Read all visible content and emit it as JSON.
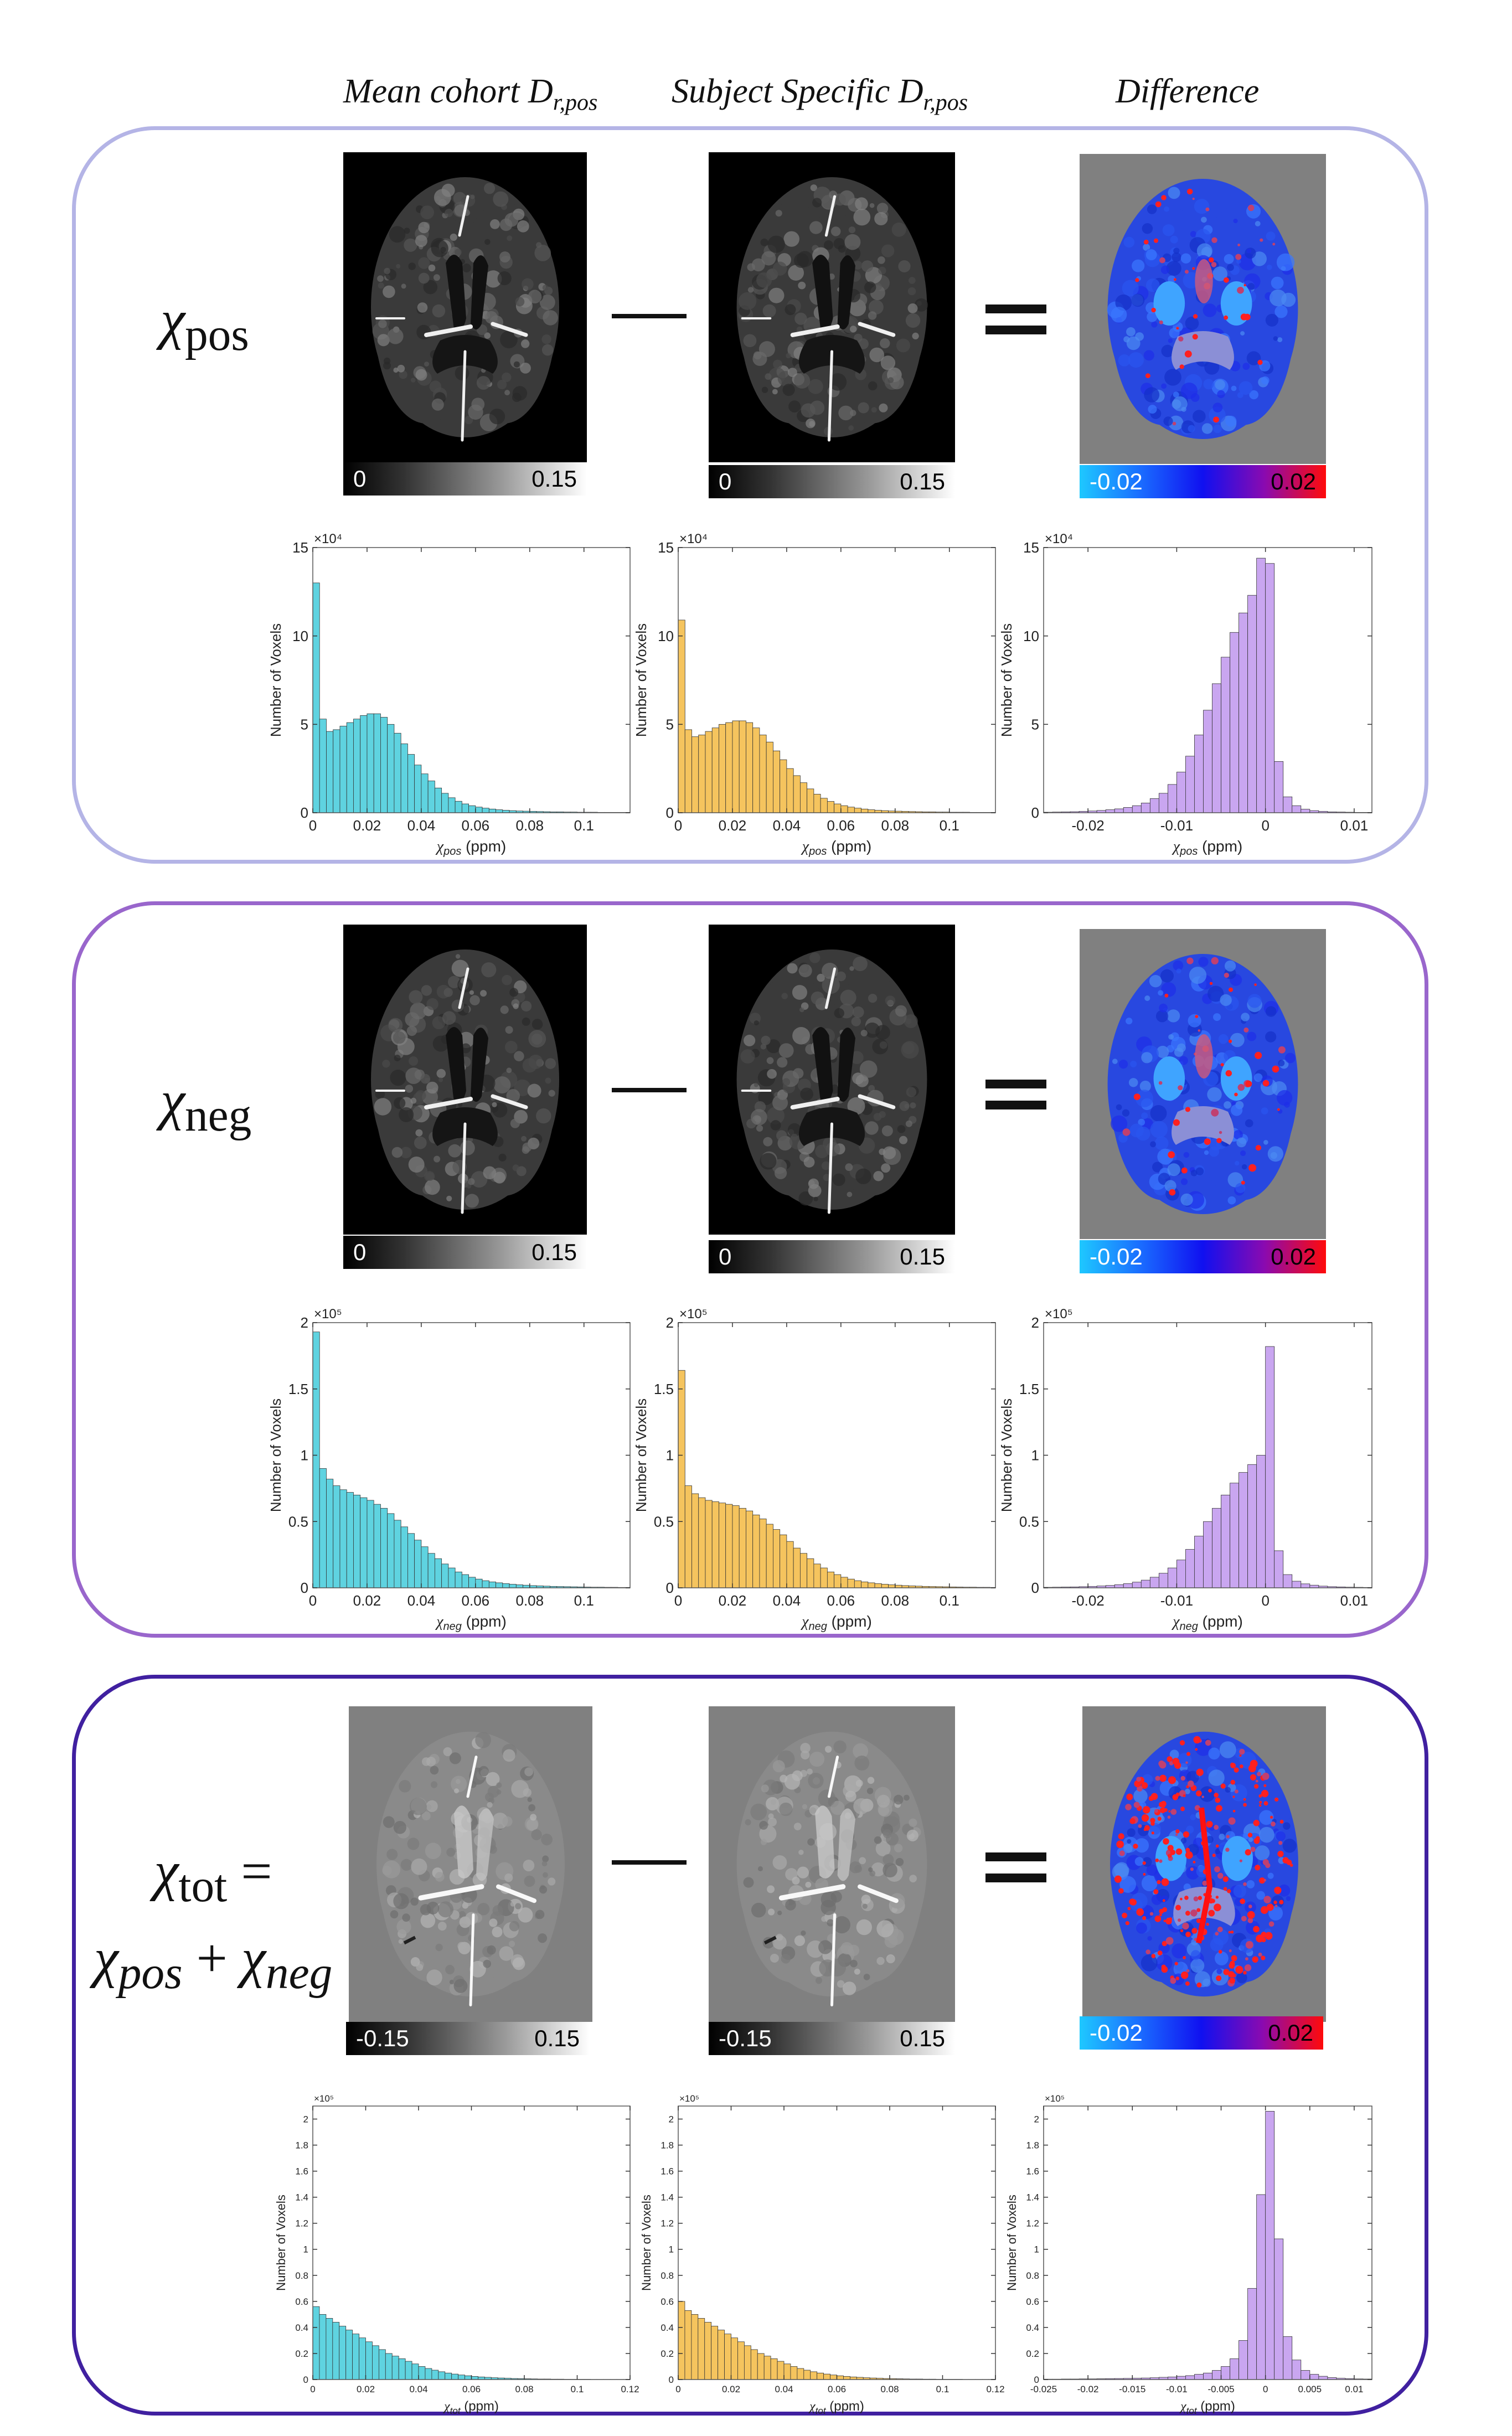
{
  "column_headers": [
    {
      "text": "Mean cohort D",
      "sub": "r,pos"
    },
    {
      "text": "Subject Specific D",
      "sub": "r,pos"
    },
    {
      "text": "Difference",
      "sub": ""
    }
  ],
  "colors": {
    "panel1_border": "#b4b4e6",
    "panel2_border": "#9966cc",
    "panel3_border": "#4020a0",
    "hist_cohort": "#5fd3e0",
    "hist_subject": "#f5c45e",
    "hist_diff": "#c9a6f0"
  },
  "rows": [
    {
      "label_chi": "χ",
      "label_sub": "pos",
      "label_line2": "",
      "colorbar_gray": {
        "min": "0",
        "max": "0.15"
      },
      "colorbar_diff": {
        "min": "-0.02",
        "max": "0.02"
      },
      "hist_exponent": "×10⁴",
      "hist_xvar": "χ",
      "hist_xsub": "pos",
      "hist_xunit": "(ppm)",
      "hist_ylabel": "Number of Voxels"
    },
    {
      "label_chi": "χ",
      "label_sub": "neg",
      "label_line2": "",
      "colorbar_gray": {
        "min": "0",
        "max": "0.15"
      },
      "colorbar_diff": {
        "min": "-0.02",
        "max": "0.02"
      },
      "hist_exponent": "×10⁵",
      "hist_xvar": "χ",
      "hist_xsub": "neg",
      "hist_xunit": "(ppm)",
      "hist_ylabel": "Number of Voxels"
    },
    {
      "label_chi": "χ",
      "label_sub": "tot",
      "label_eq": " =",
      "label_line2_a": "χ",
      "label_line2_a_sub": "pos",
      "label_line2_plus": " + ",
      "label_line2_b": "χ",
      "label_line2_b_sub": "neg",
      "colorbar_gray": {
        "min": "-0.15",
        "max": "0.15"
      },
      "colorbar_diff": {
        "min": "-0.02",
        "max": "0.02"
      },
      "hist_exponent": "×10⁵",
      "hist_xvar": "χ",
      "hist_xsub": "tot",
      "hist_xunit": "(ppm)",
      "hist_ylabel": "Number of Voxels"
    }
  ],
  "chart_data": [
    {
      "type": "bar",
      "row": 1,
      "series_name": "",
      "color": "#5fd3e0",
      "xlim": [
        0,
        0.117
      ],
      "ylim": [
        0,
        15
      ],
      "xticks": [
        "0",
        "0.02",
        "0.04",
        "0.06",
        "0.08",
        "0.1"
      ],
      "xtick_values": [
        0,
        0.02,
        0.04,
        0.06,
        0.08,
        0.1
      ],
      "yticks": [
        "0",
        "5",
        "10",
        "15"
      ],
      "ytick_values": [
        0,
        5,
        10,
        15
      ],
      "bin_width": 0.0025,
      "x_start": 0,
      "values": [
        13,
        5.3,
        4.6,
        4.7,
        4.9,
        5.1,
        5.3,
        5.5,
        5.6,
        5.6,
        5.4,
        5.0,
        4.5,
        3.9,
        3.3,
        2.7,
        2.2,
        1.8,
        1.4,
        1.1,
        0.85,
        0.65,
        0.5,
        0.4,
        0.32,
        0.26,
        0.21,
        0.17,
        0.14,
        0.12,
        0.1,
        0.09,
        0.08,
        0.07,
        0.06,
        0.05,
        0.05,
        0.04,
        0.04,
        0.03,
        0.03,
        0.03,
        0.02,
        0.02,
        0.02,
        0.02,
        0.02
      ]
    },
    {
      "type": "bar",
      "row": 1,
      "series_name": "",
      "color": "#f5c45e",
      "xlim": [
        0,
        0.117
      ],
      "ylim": [
        0,
        15
      ],
      "xticks": [
        "0",
        "0.02",
        "0.04",
        "0.06",
        "0.08",
        "0.1"
      ],
      "xtick_values": [
        0,
        0.02,
        0.04,
        0.06,
        0.08,
        0.1
      ],
      "yticks": [
        "0",
        "5",
        "10",
        "15"
      ],
      "ytick_values": [
        0,
        5,
        10,
        15
      ],
      "bin_width": 0.0025,
      "x_start": 0,
      "values": [
        10.9,
        4.7,
        4.3,
        4.4,
        4.6,
        4.8,
        5.0,
        5.1,
        5.2,
        5.2,
        5.1,
        4.8,
        4.4,
        4.0,
        3.5,
        3.0,
        2.5,
        2.1,
        1.7,
        1.35,
        1.05,
        0.82,
        0.64,
        0.5,
        0.4,
        0.32,
        0.26,
        0.21,
        0.17,
        0.14,
        0.12,
        0.1,
        0.09,
        0.08,
        0.07,
        0.06,
        0.05,
        0.05,
        0.04,
        0.04,
        0.03,
        0.03,
        0.03,
        0.02,
        0.02,
        0.02,
        0.02
      ]
    },
    {
      "type": "bar",
      "row": 1,
      "series_name": "",
      "color": "#c9a6f0",
      "xlim": [
        -0.025,
        0.012
      ],
      "ylim": [
        0,
        15
      ],
      "xticks": [
        "-0.02",
        "-0.01",
        "0",
        "0.01"
      ],
      "xtick_values": [
        -0.02,
        -0.01,
        0,
        0.01
      ],
      "yticks": [
        "0",
        "5",
        "10",
        "15"
      ],
      "ytick_values": [
        0,
        5,
        10,
        15
      ],
      "bin_width": 0.001,
      "x_start": -0.025,
      "values": [
        0.03,
        0.04,
        0.05,
        0.06,
        0.08,
        0.1,
        0.13,
        0.17,
        0.22,
        0.3,
        0.4,
        0.55,
        0.8,
        1.1,
        1.6,
        2.3,
        3.2,
        4.4,
        5.8,
        7.3,
        8.8,
        10.2,
        11.3,
        12.3,
        14.4,
        14.1,
        2.9,
        0.9,
        0.4,
        0.2,
        0.12,
        0.08,
        0.05,
        0.04,
        0.03,
        0.02,
        0.02
      ]
    },
    {
      "type": "bar",
      "row": 2,
      "series_name": "",
      "color": "#5fd3e0",
      "xlim": [
        0,
        0.117
      ],
      "ylim": [
        0,
        2
      ],
      "xticks": [
        "0",
        "0.02",
        "0.04",
        "0.06",
        "0.08",
        "0.1"
      ],
      "xtick_values": [
        0,
        0.02,
        0.04,
        0.06,
        0.08,
        0.1
      ],
      "yticks": [
        "0",
        "0.5",
        "1",
        "1.5",
        "2"
      ],
      "ytick_values": [
        0,
        0.5,
        1,
        1.5,
        2
      ],
      "bin_width": 0.0025,
      "x_start": 0,
      "values": [
        1.93,
        0.9,
        0.82,
        0.77,
        0.74,
        0.72,
        0.7,
        0.68,
        0.66,
        0.63,
        0.6,
        0.56,
        0.51,
        0.46,
        0.41,
        0.36,
        0.31,
        0.26,
        0.22,
        0.18,
        0.15,
        0.12,
        0.1,
        0.08,
        0.066,
        0.054,
        0.045,
        0.038,
        0.032,
        0.027,
        0.023,
        0.02,
        0.017,
        0.015,
        0.013,
        0.011,
        0.01,
        0.009,
        0.008,
        0.007,
        0.006,
        0.005,
        0.005,
        0.004,
        0.004,
        0.003,
        0.003
      ]
    },
    {
      "type": "bar",
      "row": 2,
      "series_name": "",
      "color": "#f5c45e",
      "xlim": [
        0,
        0.117
      ],
      "ylim": [
        0,
        2
      ],
      "xticks": [
        "0",
        "0.02",
        "0.04",
        "0.06",
        "0.08",
        "0.1"
      ],
      "xtick_values": [
        0,
        0.02,
        0.04,
        0.06,
        0.08,
        0.1
      ],
      "yticks": [
        "0",
        "0.5",
        "1",
        "1.5",
        "2"
      ],
      "ytick_values": [
        0,
        0.5,
        1,
        1.5,
        2
      ],
      "bin_width": 0.0025,
      "x_start": 0,
      "values": [
        1.64,
        0.77,
        0.71,
        0.68,
        0.66,
        0.65,
        0.64,
        0.63,
        0.62,
        0.6,
        0.58,
        0.55,
        0.52,
        0.48,
        0.44,
        0.4,
        0.35,
        0.3,
        0.26,
        0.22,
        0.18,
        0.15,
        0.12,
        0.1,
        0.08,
        0.066,
        0.054,
        0.045,
        0.038,
        0.032,
        0.027,
        0.023,
        0.02,
        0.017,
        0.015,
        0.013,
        0.011,
        0.01,
        0.009,
        0.008,
        0.007,
        0.006,
        0.005,
        0.005,
        0.004,
        0.004,
        0.003
      ]
    },
    {
      "type": "bar",
      "row": 2,
      "series_name": "",
      "color": "#c9a6f0",
      "xlim": [
        -0.025,
        0.012
      ],
      "ylim": [
        0,
        2
      ],
      "xticks": [
        "-0.02",
        "-0.01",
        "0",
        "0.01"
      ],
      "xtick_values": [
        -0.02,
        -0.01,
        0,
        0.01
      ],
      "yticks": [
        "0",
        "0.5",
        "1",
        "1.5",
        "2"
      ],
      "ytick_values": [
        0,
        0.5,
        1,
        1.5,
        2
      ],
      "bin_width": 0.001,
      "x_start": -0.025,
      "values": [
        0.004,
        0.005,
        0.006,
        0.007,
        0.009,
        0.011,
        0.014,
        0.018,
        0.024,
        0.032,
        0.043,
        0.058,
        0.08,
        0.11,
        0.15,
        0.21,
        0.29,
        0.39,
        0.5,
        0.6,
        0.7,
        0.79,
        0.87,
        0.93,
        1.0,
        1.82,
        0.28,
        0.1,
        0.05,
        0.03,
        0.02,
        0.013,
        0.009,
        0.007,
        0.005,
        0.004,
        0.003
      ]
    },
    {
      "type": "bar",
      "row": 3,
      "series_name": "",
      "color": "#5fd3e0",
      "xlim": [
        0,
        0.12
      ],
      "ylim": [
        0,
        2.1
      ],
      "xticks": [
        "0",
        "0.02",
        "0.04",
        "0.06",
        "0.08",
        "0.1",
        "0.12"
      ],
      "xtick_values": [
        0,
        0.02,
        0.04,
        0.06,
        0.08,
        0.1,
        0.12
      ],
      "yticks": [
        "0",
        "0.2",
        "0.4",
        "0.6",
        "0.8",
        "1",
        "1.2",
        "1.4",
        "1.6",
        "1.8",
        "2"
      ],
      "ytick_values": [
        0,
        0.2,
        0.4,
        0.6,
        0.8,
        1,
        1.2,
        1.4,
        1.6,
        1.8,
        2
      ],
      "bin_width": 0.0025,
      "x_start": 0,
      "values": [
        0.56,
        0.5,
        0.47,
        0.44,
        0.41,
        0.38,
        0.35,
        0.32,
        0.29,
        0.26,
        0.23,
        0.2,
        0.18,
        0.16,
        0.14,
        0.12,
        0.1,
        0.085,
        0.072,
        0.06,
        0.05,
        0.042,
        0.035,
        0.029,
        0.024,
        0.02,
        0.017,
        0.014,
        0.012,
        0.01,
        0.008,
        0.007,
        0.006,
        0.005,
        0.004,
        0.004,
        0.003,
        0.003,
        0.002,
        0.002,
        0.002,
        0.002,
        0.001,
        0.001,
        0.001,
        0.001,
        0.001,
        0.001
      ]
    },
    {
      "type": "bar",
      "row": 3,
      "series_name": "",
      "color": "#f5c45e",
      "xlim": [
        0,
        0.12
      ],
      "ylim": [
        0,
        2.1
      ],
      "xticks": [
        "0",
        "0.02",
        "0.04",
        "0.06",
        "0.08",
        "0.1",
        "0.12"
      ],
      "xtick_values": [
        0,
        0.02,
        0.04,
        0.06,
        0.08,
        0.1,
        0.12
      ],
      "yticks": [
        "0",
        "0.2",
        "0.4",
        "0.6",
        "0.8",
        "1",
        "1.2",
        "1.4",
        "1.6",
        "1.8",
        "2"
      ],
      "ytick_values": [
        0,
        0.2,
        0.4,
        0.6,
        0.8,
        1,
        1.2,
        1.4,
        1.6,
        1.8,
        2
      ],
      "bin_width": 0.0025,
      "x_start": 0,
      "values": [
        0.6,
        0.53,
        0.5,
        0.47,
        0.44,
        0.41,
        0.38,
        0.35,
        0.32,
        0.29,
        0.26,
        0.23,
        0.2,
        0.18,
        0.16,
        0.14,
        0.12,
        0.1,
        0.085,
        0.072,
        0.06,
        0.05,
        0.042,
        0.035,
        0.029,
        0.024,
        0.02,
        0.017,
        0.014,
        0.012,
        0.01,
        0.008,
        0.007,
        0.006,
        0.005,
        0.004,
        0.004,
        0.003,
        0.003,
        0.002,
        0.002,
        0.002,
        0.002,
        0.001,
        0.001,
        0.001,
        0.001,
        0.001
      ]
    },
    {
      "type": "bar",
      "row": 3,
      "series_name": "",
      "color": "#c9a6f0",
      "xlim": [
        -0.025,
        0.012
      ],
      "ylim": [
        0,
        2.1
      ],
      "xticks": [
        "-0.025",
        "-0.02",
        "-0.015",
        "-0.01",
        "-0.005",
        "0",
        "0.005",
        "0.01"
      ],
      "xtick_values": [
        -0.025,
        -0.02,
        -0.015,
        -0.01,
        -0.005,
        0,
        0.005,
        0.01
      ],
      "yticks": [
        "0",
        "0.2",
        "0.4",
        "0.6",
        "0.8",
        "1",
        "1.2",
        "1.4",
        "1.6",
        "1.8",
        "2"
      ],
      "ytick_values": [
        0,
        0.2,
        0.4,
        0.6,
        0.8,
        1,
        1.2,
        1.4,
        1.6,
        1.8,
        2
      ],
      "bin_width": 0.001,
      "x_start": -0.025,
      "values": [
        0.003,
        0.003,
        0.004,
        0.004,
        0.005,
        0.005,
        0.006,
        0.007,
        0.008,
        0.009,
        0.01,
        0.012,
        0.014,
        0.017,
        0.02,
        0.025,
        0.03,
        0.04,
        0.05,
        0.07,
        0.1,
        0.16,
        0.3,
        0.7,
        1.42,
        2.06,
        1.08,
        0.33,
        0.15,
        0.07,
        0.04,
        0.025,
        0.015,
        0.01,
        0.007,
        0.005,
        0.004
      ]
    }
  ]
}
